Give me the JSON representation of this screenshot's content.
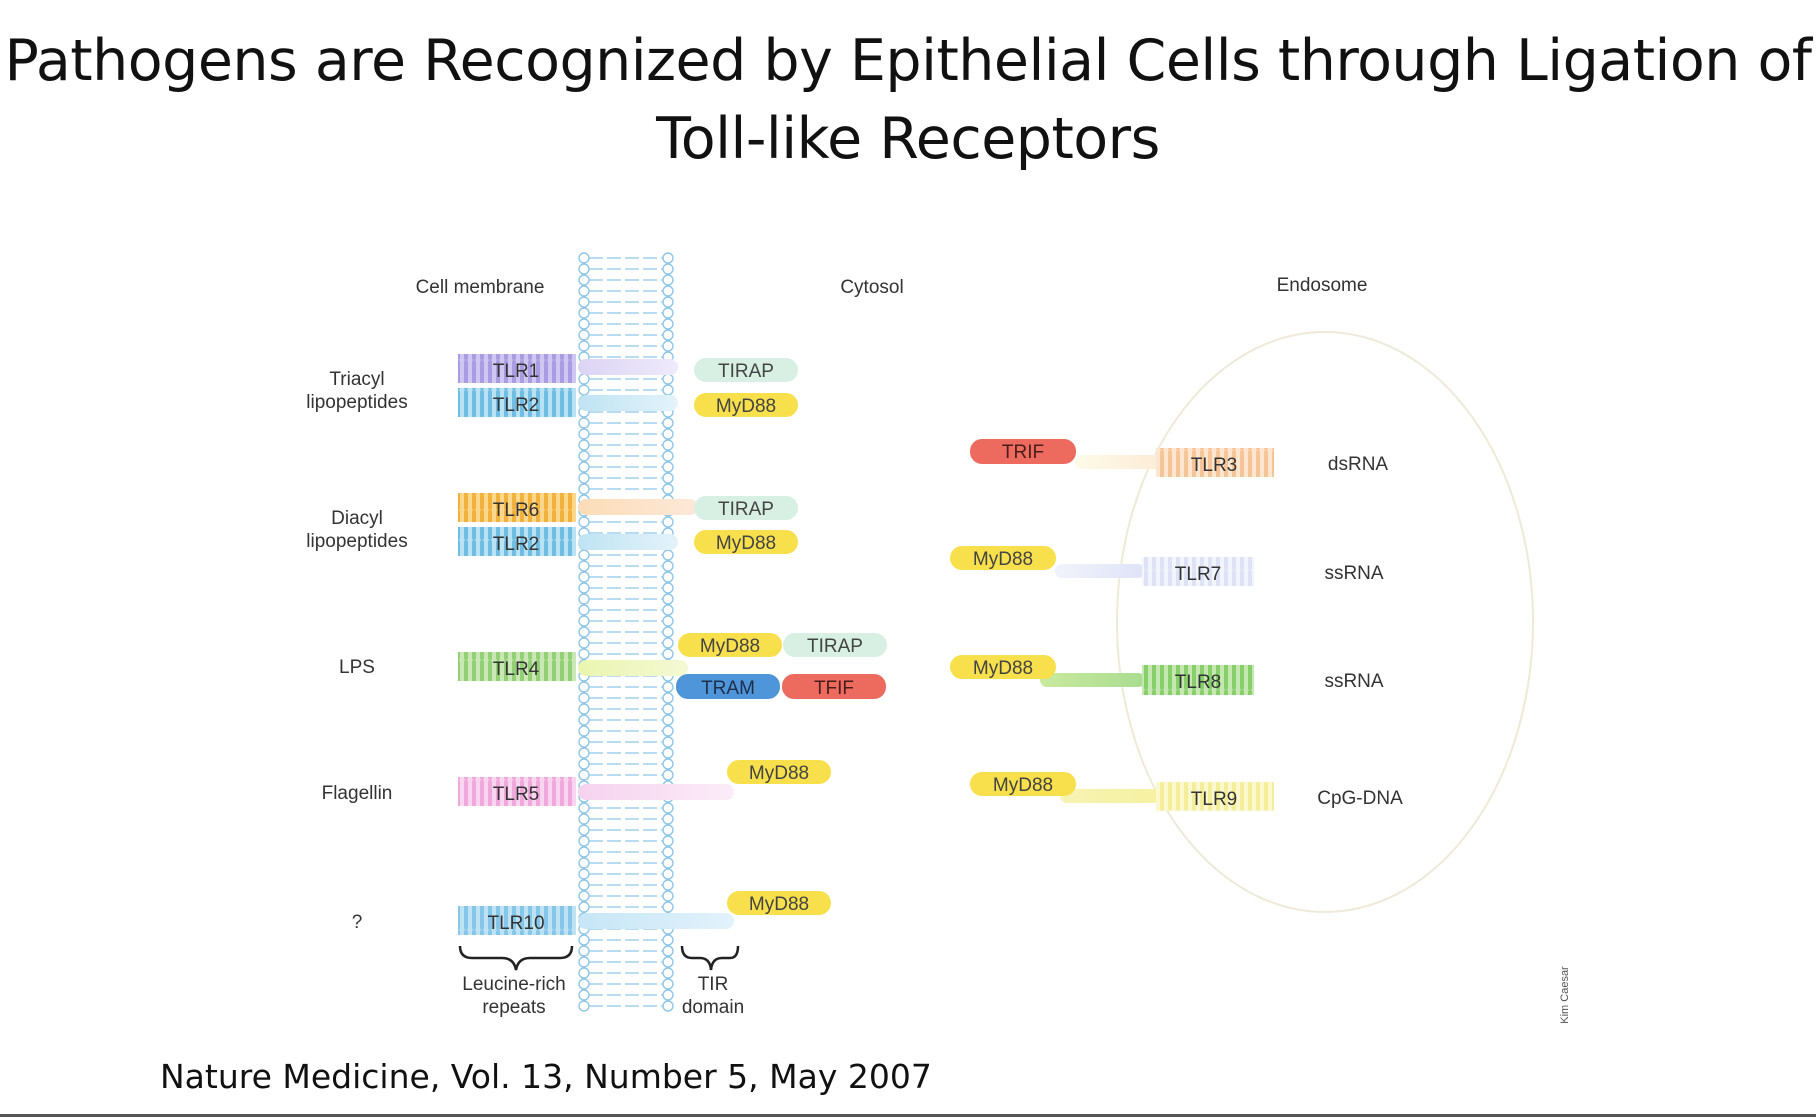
{
  "slide": {
    "title_line1": "Pathogens are Recognized by Epithelial Cells through Ligation of",
    "title_line2": "Toll-like Receptors",
    "citation": "Nature Medicine, Vol. 13, Number 5, May 2007"
  },
  "diagram": {
    "regions": {
      "cell_membrane": "Cell membrane",
      "cytosol": "Cytosol",
      "endosome": "Endosome"
    },
    "ligands": {
      "triacyl_line1": "Triacyl",
      "triacyl_line2": "lipopeptides",
      "diacyl_line1": "Diacyl",
      "diacyl_line2": "lipopeptides",
      "lps": "LPS",
      "flagellin": "Flagellin",
      "unknown": "?"
    },
    "membrane_receptors": {
      "tlr1": "TLR1",
      "tlr2_a": "TLR2",
      "tlr6": "TLR6",
      "tlr2_b": "TLR2",
      "tlr4": "TLR4",
      "tlr5": "TLR5",
      "tlr10": "TLR10"
    },
    "adaptors": {
      "tirap_1": "TIRAP",
      "myd88_1": "MyD88",
      "tirap_2": "TIRAP",
      "myd88_2": "MyD88",
      "myd88_3": "MyD88",
      "tirap_3": "TIRAP",
      "tram": "TRAM",
      "tfif": "TFIF",
      "myd88_4": "MyD88",
      "myd88_5": "MyD88",
      "trif": "TRIF",
      "myd88_6": "MyD88",
      "myd88_7": "MyD88",
      "myd88_8": "MyD88"
    },
    "endosomal_receptors": {
      "tlr3": "TLR3",
      "tlr7": "TLR7",
      "tlr8": "TLR8",
      "tlr9": "TLR9"
    },
    "endosomal_ligands": {
      "dsrna": "dsRNA",
      "ssrna_1": "ssRNA",
      "ssrna_2": "ssRNA",
      "cpg_dna": "CpG-DNA"
    },
    "annotations": {
      "lrr_line1": "Leucine-rich",
      "lrr_line2": "repeats",
      "tir_line1": "TIR",
      "tir_line2": "domain",
      "credit": "Kim Caesar"
    },
    "colors": {
      "tlr1": "#b9aee8",
      "tlr2": "#8ecfea",
      "tlr6": "#f6c05a",
      "tlr4": "#a9d98c",
      "tlr5": "#f3b6e0",
      "tlr10": "#9cd2ee",
      "myd88": "#f7e04c",
      "tirap": "#d8f0e4",
      "tram": "#4f95d9",
      "trif": "#ec6a5e",
      "tlr3": "#f8cfa8",
      "tlr7": "#d6dcf5",
      "tlr8": "#9fd88c",
      "tlr9": "#f5f0a8",
      "membrane": "#8fc6e6"
    }
  }
}
